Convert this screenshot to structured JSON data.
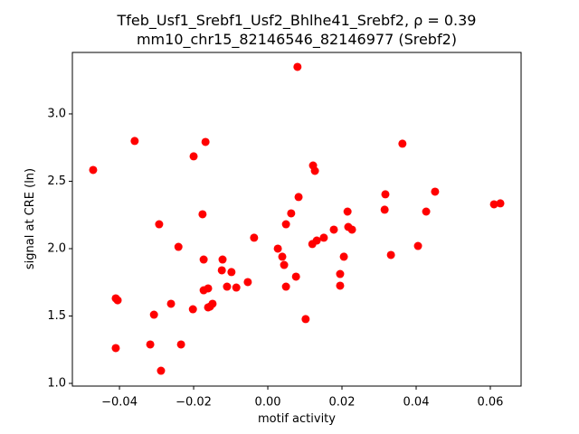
{
  "chart_data": {
    "type": "scatter",
    "title": "Tfeb_Usf1_Srebf1_Usf2_Bhlhe41_Srebf2, ρ = 0.39",
    "subtitle": "mm10_chr15_82146546_82146977 (Srebf2)",
    "x_label": "motif activity",
    "y_label": "signal at CRE (ln)",
    "color": "#ff0000",
    "x": [
      -0.0471,
      -0.0359,
      -0.02,
      -0.0168,
      0.008,
      0.0122,
      0.0127,
      0.0083,
      0.0363,
      0.0317,
      0.0451,
      0.061,
      0.0627,
      0.0315,
      0.0427,
      0.0215,
      -0.0293,
      -0.0176,
      0.0063,
      0.0049,
      0.0217,
      0.0227,
      0.0178,
      0.0151,
      0.0132,
      0.012,
      -0.0037,
      0.0027,
      -0.0241,
      0.0405,
      0.0205,
      0.0332,
      0.0039,
      -0.0173,
      -0.0122,
      0.0044,
      -0.0124,
      -0.0098,
      0.0195,
      0.0076,
      -0.0054,
      0.0195,
      0.0049,
      -0.011,
      -0.0085,
      -0.0161,
      -0.0173,
      -0.041,
      -0.0405,
      -0.0261,
      -0.0149,
      -0.0156,
      -0.0161,
      -0.0202,
      -0.0307,
      0.0102,
      -0.0317,
      -0.0234,
      -0.041,
      -0.0288
    ],
    "values": [
      2.584,
      2.799,
      2.685,
      2.792,
      3.349,
      2.617,
      2.577,
      2.383,
      2.779,
      2.403,
      2.423,
      2.329,
      2.336,
      2.289,
      2.275,
      2.275,
      2.181,
      2.255,
      2.262,
      2.181,
      2.161,
      2.141,
      2.141,
      2.081,
      2.06,
      2.034,
      2.081,
      2.0,
      2.013,
      2.02,
      1.94,
      1.953,
      1.94,
      1.919,
      1.919,
      1.879,
      1.839,
      1.826,
      1.812,
      1.792,
      1.752,
      1.725,
      1.718,
      1.718,
      1.711,
      1.705,
      1.691,
      1.631,
      1.617,
      1.591,
      1.591,
      1.57,
      1.564,
      1.55,
      1.51,
      1.477,
      1.289,
      1.289,
      1.262,
      1.094
    ],
    "xlim": [
      -0.0527,
      0.0683
    ],
    "ylim": [
      0.98,
      3.456
    ],
    "xticks": [
      {
        "value": -0.04,
        "label": "−0.04"
      },
      {
        "value": -0.02,
        "label": "−0.02"
      },
      {
        "value": 0,
        "label": "0.00"
      },
      {
        "value": 0.02,
        "label": "0.02"
      },
      {
        "value": 0.04,
        "label": "0.04"
      },
      {
        "value": 0.06,
        "label": "0.06"
      }
    ],
    "yticks": [
      {
        "value": 1,
        "label": "1.0"
      },
      {
        "value": 1.5,
        "label": "1.5"
      },
      {
        "value": 2,
        "label": "2.0"
      },
      {
        "value": 2.5,
        "label": "2.5"
      },
      {
        "value": 3,
        "label": "3.0"
      }
    ],
    "grid": false
  }
}
